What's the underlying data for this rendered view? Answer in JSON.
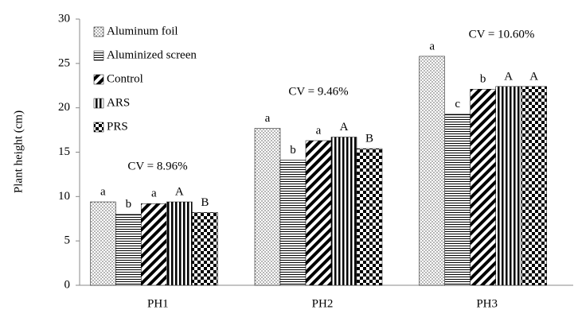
{
  "chart_data": {
    "type": "bar",
    "y_label": "Plant height (cm)",
    "categories": [
      "PH1",
      "PH2",
      "PH3"
    ],
    "annotations": [
      "CV = 8.96%",
      "CV = 9.46%",
      "CV = 10.60%"
    ],
    "series": [
      {
        "name": "Aluminum foil",
        "color": "#000000",
        "pattern": "dots",
        "values": [
          9.4,
          17.7,
          25.8
        ],
        "letters": [
          "a",
          "a",
          "a"
        ]
      },
      {
        "name": "Aluminized screen",
        "color": "#000000",
        "pattern": "horizontal",
        "values": [
          8.0,
          14.1,
          19.3
        ],
        "letters": [
          "b",
          "b",
          "c"
        ]
      },
      {
        "name": "Control",
        "color": "#000000",
        "pattern": "diagonal",
        "values": [
          9.2,
          16.3,
          22.1
        ],
        "letters": [
          "a",
          "a",
          "b"
        ]
      },
      {
        "name": "ARS",
        "color": "#000000",
        "pattern": "vertical",
        "values": [
          9.4,
          16.7,
          22.4
        ],
        "letters": [
          "A",
          "A",
          "A"
        ]
      },
      {
        "name": "PRS",
        "color": "#000000",
        "pattern": "checker",
        "values": [
          8.2,
          15.4,
          22.4
        ],
        "letters": [
          "B",
          "B",
          "A"
        ]
      }
    ],
    "ylim": [
      0,
      30
    ],
    "yticks": [
      0,
      5,
      10,
      15,
      20,
      25,
      30
    ],
    "grid": false,
    "legend": "upper left"
  }
}
